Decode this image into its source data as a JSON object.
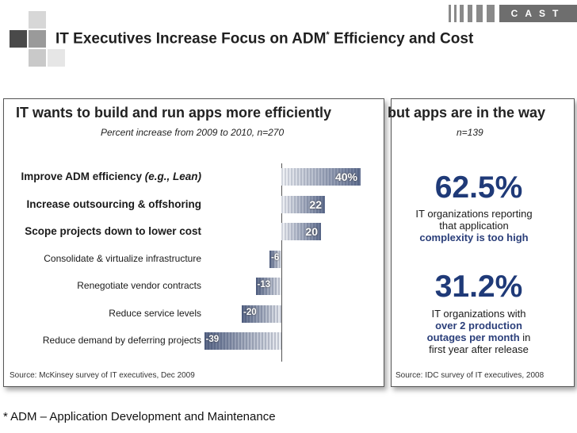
{
  "header": {
    "title": "IT Executives Increase Focus on ADM",
    "title_mark": "*",
    "title_tail": " Efficiency and Cost",
    "brand": "CAST"
  },
  "left_panel": {
    "heading": "IT wants to build and run apps more efficiently",
    "subtitle": "Percent increase from 2009 to 2010, n=270",
    "source": "Source:  McKinsey survey of IT executives, Dec 2009"
  },
  "chart_data": {
    "type": "bar",
    "orientation": "horizontal",
    "title": "IT wants to build and run apps more efficiently",
    "subtitle": "Percent increase from 2009 to 2010, n=270",
    "categories": [
      "Improve ADM efficiency",
      "Increase outsourcing & offshoring",
      "Scope projects down to lower cost",
      "Consolidate & virtualize infrastructure",
      "Renegotiate vendor contracts",
      "Reduce service levels",
      "Reduce demand by deferring projects"
    ],
    "category_suffix": [
      " (e.g., Lean)",
      "",
      "",
      "",
      "",
      "",
      ""
    ],
    "values": [
      40,
      22,
      20,
      -6,
      -13,
      -20,
      -39
    ],
    "value_labels": [
      "40%",
      "22",
      "20",
      "-6",
      "-13",
      "-20",
      "-39"
    ],
    "emphasized": [
      true,
      true,
      true,
      false,
      false,
      false,
      false
    ],
    "xlim": [
      -39,
      40
    ],
    "xlabel": "",
    "ylabel": ""
  },
  "right_panel": {
    "heading": "but apps are in the way",
    "subtitle": "n=139",
    "stat1": {
      "value": "62.5%",
      "line1": "IT organizations reporting",
      "line2": "that application",
      "line3": "complexity is too high"
    },
    "stat2": {
      "value": "31.2%",
      "line1": "IT organizations with",
      "line2": "over 2 production",
      "line3a": "outages per month",
      "line3b": " in",
      "line4": "first year after release"
    },
    "source": "Source:  IDC survey of IT executives, 2008"
  },
  "footnote": "* ADM – Application Development and Maintenance"
}
